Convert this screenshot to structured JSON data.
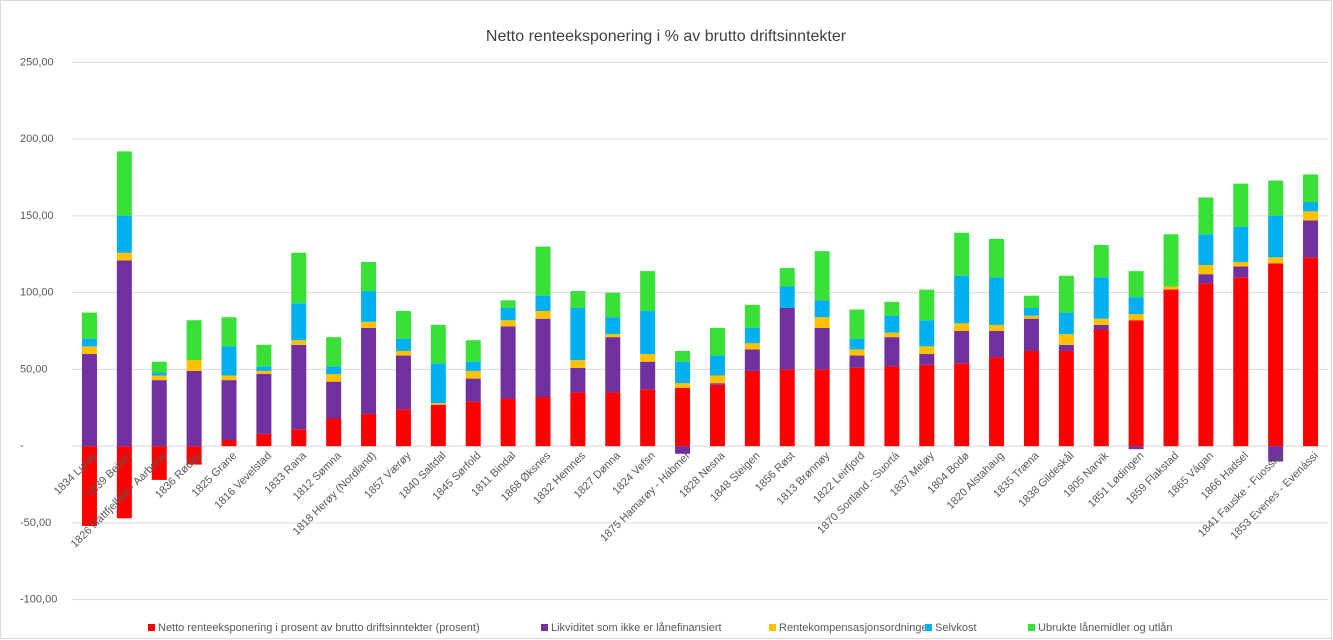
{
  "chart_data": {
    "type": "stacked_bar",
    "title": "Netto renteeksponering  i % av brutto driftsinntekter",
    "categories": [
      "1834 Lurøy",
      "1839 Beiarn",
      "1826 Hattfjelldal - Aarborte",
      "1836 Rødøy",
      "1825 Grane",
      "1816 Vevelstad",
      "1833 Rana",
      "1812 Sømna",
      "1818 Herøy (Nordland)",
      "1857 Værøy",
      "1840 Saltdal",
      "1845 Sørfold",
      "1811 Bindal",
      "1868 Øksnes",
      "1832 Hemnes",
      "1827 Dønna",
      "1824 Vefsn",
      "1875 Hamarøy - Hábmer",
      "1828 Nesna",
      "1848 Steigen",
      "1856 Røst",
      "1813 Brønnøy",
      "1822 Leirfjord",
      "1870 Sortland - Suortá",
      "1837 Meløy",
      "1804 Bodø",
      "1820 Alstahaug",
      "1835 Træna",
      "1838 Gildeskål",
      "1805 Narvik",
      "1851 Lødingen",
      "1859 Flakstad",
      "1865 Vágan",
      "1866 Hadsel",
      "1841 Fauske - Fuossko",
      "1853 Evenes - Evenássi"
    ],
    "series": [
      {
        "name": "Netto renteeksponering i prosent av brutto driftsinntekter (prosent)",
        "color": "#ff0000",
        "values": [
          -52,
          -47,
          -22,
          -12,
          4,
          8,
          11,
          18,
          21,
          24,
          27,
          29,
          31,
          32,
          35,
          35,
          37,
          38,
          40,
          49,
          50,
          50,
          51,
          52,
          53,
          54,
          58,
          62,
          62,
          76,
          82,
          102,
          106,
          110,
          119,
          123
        ]
      },
      {
        "name": "Likviditet som ikke er lånefinansiert",
        "color": "#7030a0",
        "values": [
          60,
          121,
          43,
          49,
          39,
          39,
          55,
          24,
          56,
          35,
          0,
          15,
          47,
          51,
          16,
          36,
          18,
          -5,
          1,
          14,
          40,
          27,
          8,
          19,
          7,
          21,
          17,
          21,
          4,
          3,
          -2,
          0,
          6,
          7,
          -10,
          24
        ]
      },
      {
        "name": "Rentekompensasjonsordninger",
        "color": "#ffc000",
        "values": [
          5,
          5,
          3,
          7,
          3,
          2,
          3,
          5,
          4,
          3,
          1,
          5,
          4,
          5,
          5,
          2,
          5,
          3,
          5,
          4,
          0,
          7,
          4,
          3,
          5,
          5,
          4,
          2,
          7,
          4,
          4,
          2,
          6,
          3,
          4,
          6
        ]
      },
      {
        "name": "Selvkost",
        "color": "#00b0f0",
        "values": [
          5,
          24,
          2,
          0,
          19,
          3,
          24,
          5,
          20,
          8,
          26,
          6,
          8,
          10,
          34,
          11,
          28,
          14,
          13,
          10,
          14,
          11,
          7,
          11,
          17,
          31,
          31,
          5,
          14,
          27,
          11,
          0,
          20,
          23,
          27,
          6
        ]
      },
      {
        "name": "Ubrukte lånemidler og utlån",
        "color": "#38e038",
        "values": [
          17,
          42,
          7,
          26,
          19,
          14,
          33,
          19,
          19,
          18,
          25,
          14,
          5,
          32,
          11,
          16,
          26,
          7,
          18,
          15,
          12,
          32,
          19,
          9,
          20,
          28,
          25,
          8,
          24,
          21,
          17,
          34,
          24,
          28,
          23,
          18
        ]
      }
    ],
    "ylim": [
      -110,
      260
    ],
    "yticks": [
      {
        "value": -100,
        "label": "-100,00"
      },
      {
        "value": -50,
        "label": "-50,00"
      },
      {
        "value": 0,
        "label": "-"
      },
      {
        "value": 50,
        "label": "50,00"
      },
      {
        "value": 100,
        "label": "100,00"
      },
      {
        "value": 150,
        "label": "150,00"
      },
      {
        "value": 200,
        "label": "200,00"
      },
      {
        "value": 250,
        "label": "250,00"
      }
    ],
    "grid": true,
    "legend": "bottom"
  }
}
